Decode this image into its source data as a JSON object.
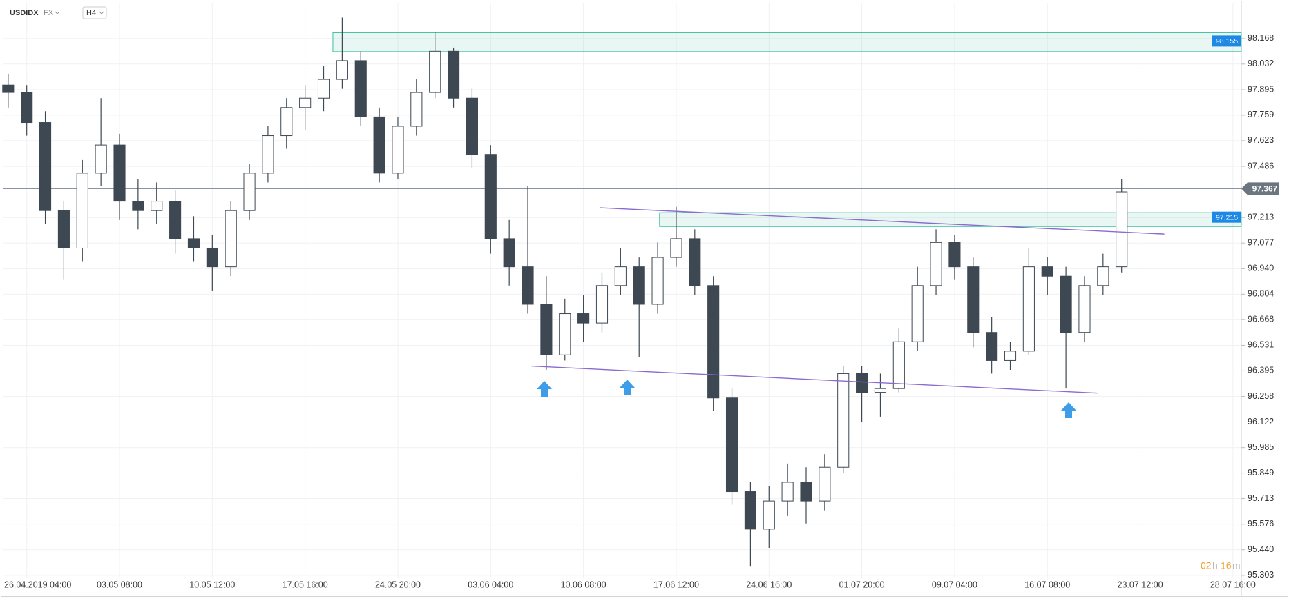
{
  "header": {
    "symbol": "USDIDX",
    "market": "FX",
    "interval": "H4"
  },
  "timer": [
    "02",
    "h",
    "16",
    "m"
  ],
  "chart_data": {
    "type": "candlestick",
    "ylim": [
      95.288,
      98.359
    ],
    "yticks": [
      98.168,
      98.032,
      97.895,
      97.759,
      97.623,
      97.486,
      97.213,
      97.077,
      96.94,
      96.804,
      96.668,
      96.531,
      96.395,
      96.258,
      96.122,
      95.985,
      95.849,
      95.713,
      95.576,
      95.44,
      95.303
    ],
    "yticks_labels": [
      "98.168",
      "98.032",
      "97.895",
      "97.759",
      "97.623",
      "97.486",
      "97.213",
      "97.077",
      "96.940",
      "96.804",
      "96.668",
      "96.531",
      "96.395",
      "96.258",
      "96.122",
      "95.985",
      "95.849",
      "95.713",
      "95.576",
      "95.440",
      "95.303"
    ],
    "xlim": [
      -0.44,
      66.6
    ],
    "xticks": [
      {
        "value": 1,
        "label": "26.04.2019  04:00"
      },
      {
        "value": 6,
        "label": "03.05  08:00"
      },
      {
        "value": 11,
        "label": "10.05  12:00"
      },
      {
        "value": 16,
        "label": "17.05  16:00"
      },
      {
        "value": 21,
        "label": "24.05  20:00"
      },
      {
        "value": 26,
        "label": "03.06  04:00"
      },
      {
        "value": 31,
        "label": "10.06  08:00"
      },
      {
        "value": 36,
        "label": "17.06  12:00"
      },
      {
        "value": 41,
        "label": "24.06  16:00"
      },
      {
        "value": 46,
        "label": "01.07  20:00"
      },
      {
        "value": 51,
        "label": "09.07  04:00"
      },
      {
        "value": 56,
        "label": "16.07  08:00"
      },
      {
        "value": 61,
        "label": "23.07  12:00"
      },
      {
        "value": 66,
        "label": "28.07  16:00"
      }
    ],
    "grid": true,
    "up_color": "#ffffff",
    "down_color": "#3d4852",
    "outline_color": "#3d4852",
    "candles": [
      [
        97.92,
        97.98,
        97.8,
        97.88
      ],
      [
        97.88,
        97.92,
        97.65,
        97.72
      ],
      [
        97.72,
        97.78,
        97.18,
        97.25
      ],
      [
        97.25,
        97.3,
        96.88,
        97.05
      ],
      [
        97.05,
        97.52,
        96.98,
        97.45
      ],
      [
        97.45,
        97.85,
        97.38,
        97.6
      ],
      [
        97.6,
        97.66,
        97.2,
        97.3
      ],
      [
        97.3,
        97.42,
        97.15,
        97.25
      ],
      [
        97.25,
        97.4,
        97.18,
        97.3
      ],
      [
        97.3,
        97.36,
        97.02,
        97.1
      ],
      [
        97.1,
        97.22,
        96.98,
        97.05
      ],
      [
        97.05,
        97.12,
        96.82,
        96.95
      ],
      [
        96.95,
        97.3,
        96.9,
        97.25
      ],
      [
        97.25,
        97.5,
        97.2,
        97.45
      ],
      [
        97.45,
        97.7,
        97.4,
        97.65
      ],
      [
        97.65,
        97.85,
        97.58,
        97.8
      ],
      [
        97.8,
        97.92,
        97.68,
        97.85
      ],
      [
        97.85,
        98.02,
        97.78,
        97.95
      ],
      [
        97.95,
        98.28,
        97.9,
        98.05
      ],
      [
        98.05,
        98.1,
        97.7,
        97.75
      ],
      [
        97.75,
        97.8,
        97.4,
        97.45
      ],
      [
        97.45,
        97.75,
        97.42,
        97.7
      ],
      [
        97.7,
        97.95,
        97.65,
        97.88
      ],
      [
        97.88,
        98.2,
        97.85,
        98.1
      ],
      [
        98.1,
        98.12,
        97.8,
        97.85
      ],
      [
        97.85,
        97.9,
        97.48,
        97.55
      ],
      [
        97.55,
        97.6,
        97.02,
        97.1
      ],
      [
        97.1,
        97.2,
        96.85,
        96.95
      ],
      [
        96.95,
        97.38,
        96.7,
        96.75
      ],
      [
        96.75,
        96.9,
        96.4,
        96.48
      ],
      [
        96.48,
        96.78,
        96.45,
        96.7
      ],
      [
        96.7,
        96.8,
        96.55,
        96.65
      ],
      [
        96.65,
        96.92,
        96.6,
        96.85
      ],
      [
        96.85,
        97.05,
        96.8,
        96.95
      ],
      [
        96.95,
        97.0,
        96.47,
        96.75
      ],
      [
        96.75,
        97.08,
        96.7,
        97.0
      ],
      [
        97.0,
        97.27,
        96.95,
        97.1
      ],
      [
        97.1,
        97.15,
        96.8,
        96.85
      ],
      [
        96.85,
        96.9,
        96.18,
        96.25
      ],
      [
        96.25,
        96.3,
        95.68,
        95.75
      ],
      [
        95.75,
        95.8,
        95.35,
        95.55
      ],
      [
        95.55,
        95.78,
        95.45,
        95.7
      ],
      [
        95.7,
        95.9,
        95.62,
        95.8
      ],
      [
        95.8,
        95.88,
        95.58,
        95.7
      ],
      [
        95.7,
        95.95,
        95.65,
        95.88
      ],
      [
        95.88,
        96.42,
        95.85,
        96.38
      ],
      [
        96.38,
        96.42,
        96.12,
        96.28
      ],
      [
        96.28,
        96.38,
        96.15,
        96.3
      ],
      [
        96.3,
        96.62,
        96.28,
        96.55
      ],
      [
        96.55,
        96.95,
        96.5,
        96.85
      ],
      [
        96.85,
        97.15,
        96.8,
        97.08
      ],
      [
        97.08,
        97.12,
        96.88,
        96.95
      ],
      [
        96.95,
        97.0,
        96.52,
        96.6
      ],
      [
        96.6,
        96.68,
        96.38,
        96.45
      ],
      [
        96.45,
        96.55,
        96.4,
        96.5
      ],
      [
        96.5,
        97.05,
        96.48,
        96.95
      ],
      [
        96.95,
        97.0,
        96.8,
        96.9
      ],
      [
        96.9,
        96.95,
        96.3,
        96.6
      ],
      [
        96.6,
        96.9,
        96.55,
        96.85
      ],
      [
        96.85,
        97.02,
        96.8,
        96.95
      ],
      [
        96.95,
        97.42,
        96.92,
        97.35
      ]
    ],
    "zones": [
      {
        "start": 17.5,
        "top": 98.199,
        "bottom": 98.098,
        "tag": 98.155,
        "tag_label": "98.155",
        "color": "#3fbf9f"
      },
      {
        "start": 35.1,
        "top": 97.239,
        "bottom": 97.165,
        "tag": 97.215,
        "tag_label": "97.215",
        "color": "#3fbf9f"
      }
    ],
    "trendlines": [
      {
        "x": [
          31.9,
          62.3
        ],
        "y": [
          97.265,
          97.125
        ],
        "color": "#8a6bd1"
      },
      {
        "x": [
          28.2,
          58.7
        ],
        "y": [
          96.42,
          96.276
        ],
        "color": "#8a6bd1"
      }
    ],
    "last": 97.367,
    "last_label": "97.367"
  }
}
